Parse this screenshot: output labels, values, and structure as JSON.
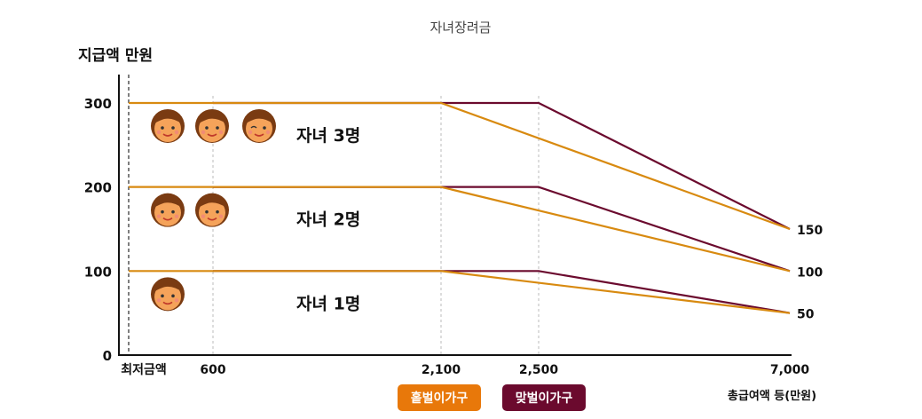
{
  "chart_data": {
    "type": "line",
    "title": "자녀장려금",
    "ylabel": "지급액 만원",
    "xlabel": "총급여액 등(만원)",
    "yticks": [
      {
        "value": 0,
        "label": "0"
      },
      {
        "value": 100,
        "label": "100"
      },
      {
        "value": 200,
        "label": "200"
      },
      {
        "value": 300,
        "label": "300"
      }
    ],
    "xticks": [
      {
        "value": 0,
        "label": "최저금액"
      },
      {
        "value": 600,
        "label": "600"
      },
      {
        "value": 2100,
        "label": "2,100"
      },
      {
        "value": 2500,
        "label": "2,500"
      },
      {
        "value": 7000,
        "label": "7,000"
      }
    ],
    "right_labels": [
      {
        "value": 150,
        "label": "150"
      },
      {
        "value": 100,
        "label": "100"
      },
      {
        "value": 50,
        "label": "50"
      }
    ],
    "series": [
      {
        "name": "홑벌이가구",
        "group": "자녀 1명",
        "color": "#d88a10",
        "points": [
          [
            0,
            100
          ],
          [
            2100,
            100
          ],
          [
            7000,
            50
          ]
        ]
      },
      {
        "name": "홑벌이가구",
        "group": "자녀 2명",
        "color": "#d88a10",
        "points": [
          [
            0,
            200
          ],
          [
            2100,
            200
          ],
          [
            7000,
            100
          ]
        ]
      },
      {
        "name": "홑벌이가구",
        "group": "자녀 3명",
        "color": "#d88a10",
        "points": [
          [
            0,
            300
          ],
          [
            2100,
            300
          ],
          [
            7000,
            150
          ]
        ]
      },
      {
        "name": "맞벌이가구",
        "group": "자녀 1명",
        "color": "#6b0a2e",
        "points": [
          [
            600,
            100
          ],
          [
            2500,
            100
          ],
          [
            7000,
            50
          ]
        ]
      },
      {
        "name": "맞벌이가구",
        "group": "자녀 2명",
        "color": "#6b0a2e",
        "points": [
          [
            600,
            200
          ],
          [
            2500,
            200
          ],
          [
            7000,
            100
          ]
        ]
      },
      {
        "name": "맞벌이가구",
        "group": "자녀 3명",
        "color": "#6b0a2e",
        "points": [
          [
            600,
            300
          ],
          [
            2500,
            300
          ],
          [
            7000,
            150
          ]
        ]
      }
    ],
    "annotations": [
      {
        "text": "자녀 3명",
        "children": 3,
        "y": 300
      },
      {
        "text": "자녀 2명",
        "children": 2,
        "y": 200
      },
      {
        "text": "자녀 1명",
        "children": 1,
        "y": 100
      }
    ],
    "legend": {
      "placement": "bottom-center",
      "items": [
        {
          "label": "홑벌이가구",
          "color": "#e8780a"
        },
        {
          "label": "맞벌이가구",
          "color": "#6b0a2e"
        }
      ]
    },
    "icon": "child-face-icon",
    "grid": "vertical dotted"
  }
}
